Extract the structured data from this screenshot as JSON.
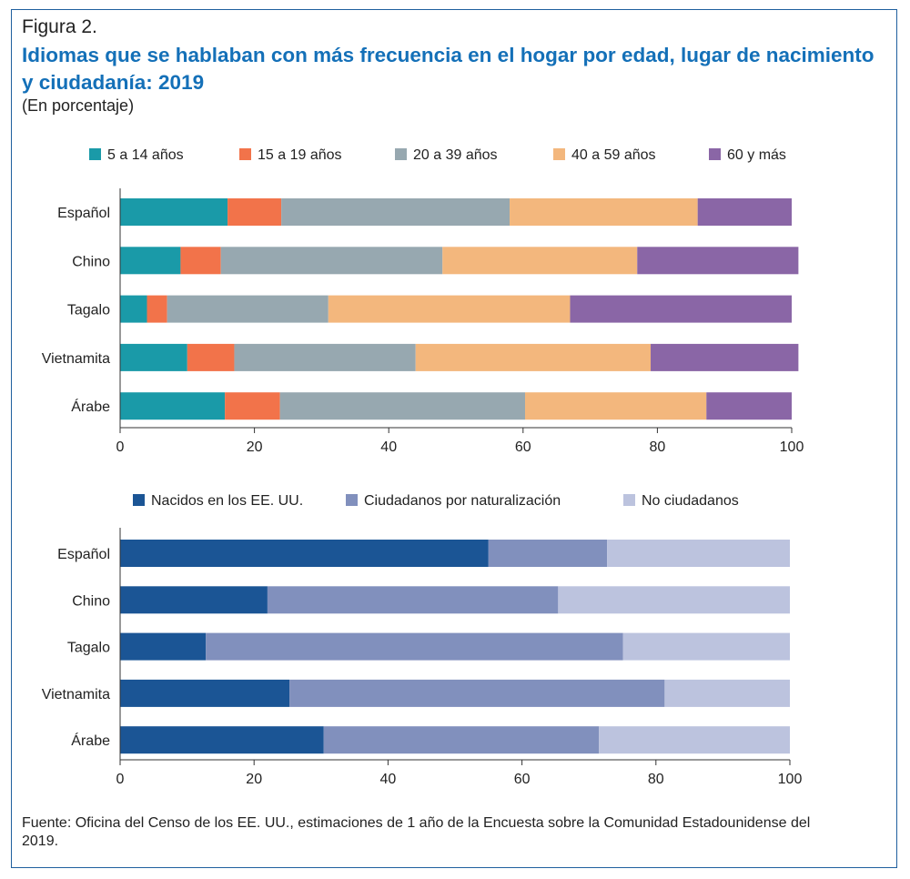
{
  "figure_label": "Figura 2.",
  "title": "Idiomas que se hablaban con más frecuencia en el hogar por edad, lugar de nacimiento y ciudadanía: 2019",
  "subtitle": "(En porcentaje)",
  "source": "Fuente: Oficina del Censo de los EE. UU., estimaciones de 1 año de la Encuesta sobre la Comunidad Estadounidense del 2019.",
  "chart_data": [
    {
      "type": "bar",
      "orientation": "horizontal",
      "stacked": true,
      "categories": [
        "Español",
        "Chino",
        "Tagalo",
        "Vietnamita",
        "Árabe"
      ],
      "series": [
        {
          "name": "5 a 14 años",
          "color": "#1a9aa8",
          "values": [
            16,
            9,
            4,
            10,
            15.6
          ]
        },
        {
          "name": "15 a 19 años",
          "color": "#f2734a",
          "values": [
            8,
            6,
            3,
            7,
            8.2
          ]
        },
        {
          "name": "20 a 39 años",
          "color": "#97a8b0",
          "values": [
            34,
            33,
            24,
            27,
            36.5
          ]
        },
        {
          "name": "40 a 59 años",
          "color": "#f3b77d",
          "values": [
            28,
            29,
            36,
            35,
            27
          ]
        },
        {
          "name": "60 y más",
          "color": "#8a66a6",
          "values": [
            14,
            24,
            33,
            22,
            12.7
          ]
        }
      ],
      "xlim": [
        0,
        100
      ],
      "xticks": [
        "0",
        "20",
        "40",
        "60",
        "80",
        "100"
      ],
      "legend": "top"
    },
    {
      "type": "bar",
      "orientation": "horizontal",
      "stacked": true,
      "categories": [
        "Español",
        "Chino",
        "Tagalo",
        "Vietnamita",
        "Árabe"
      ],
      "series": [
        {
          "name": "Nacidos en los EE. UU.",
          "color": "#1b5595",
          "values": [
            55,
            22,
            12.8,
            25.3,
            30.4
          ]
        },
        {
          "name": "Ciudadanos por naturalización",
          "color": "#8190bd",
          "values": [
            17.7,
            43.4,
            62.3,
            56,
            41.1
          ]
        },
        {
          "name": "No ciudadanos",
          "color": "#bcc3de",
          "values": [
            27.3,
            34.6,
            24.9,
            18.7,
            28.5
          ]
        }
      ],
      "xlim": [
        0,
        100
      ],
      "xticks": [
        "0",
        "20",
        "40",
        "60",
        "80",
        "100"
      ],
      "legend": "top"
    }
  ]
}
